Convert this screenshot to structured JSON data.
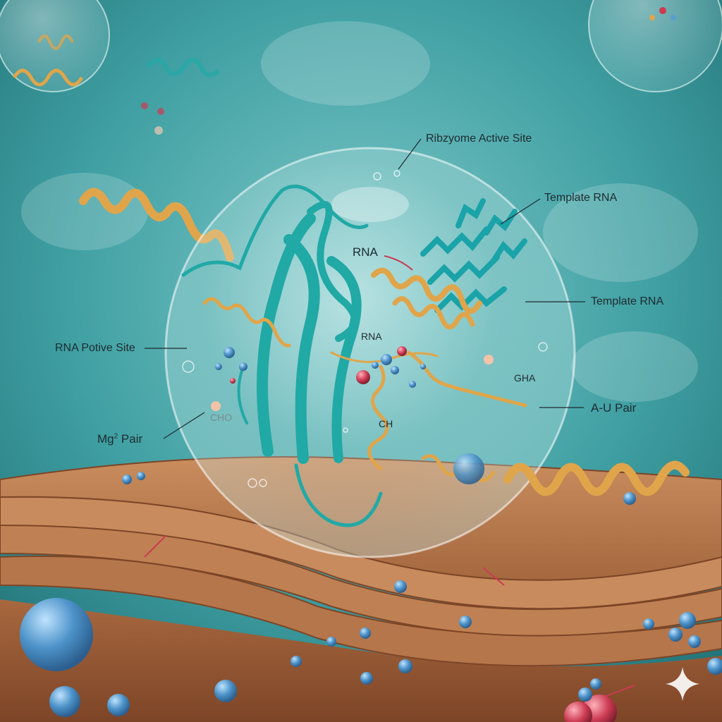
{
  "labels": {
    "ribozyme_active_site": "Ribzyome Active Site",
    "template_rna_top": "Template RNA",
    "template_rna_right": "Template RNA",
    "rna_potive_site": "RNA Potive Site",
    "mg_pair_main": "Mg",
    "mg_pair_sup": "2",
    "mg_pair_suffix": " Pair",
    "rna_upper": "RNA",
    "rna_center": "RNA",
    "gha": "GHA",
    "au_pair": "A-U Pair",
    "ch": "CH",
    "cho_faint": "CHO"
  },
  "colors": {
    "background": "#2f8f92",
    "protein_teal": "#21a9a6",
    "rna_gold": "#e0a54a",
    "sheet_tan": "#b87a4e",
    "ion_blue": "#5a9fd0",
    "ion_red": "#cc3b52"
  },
  "icons": {
    "corner_mark": "sparkle-icon"
  }
}
